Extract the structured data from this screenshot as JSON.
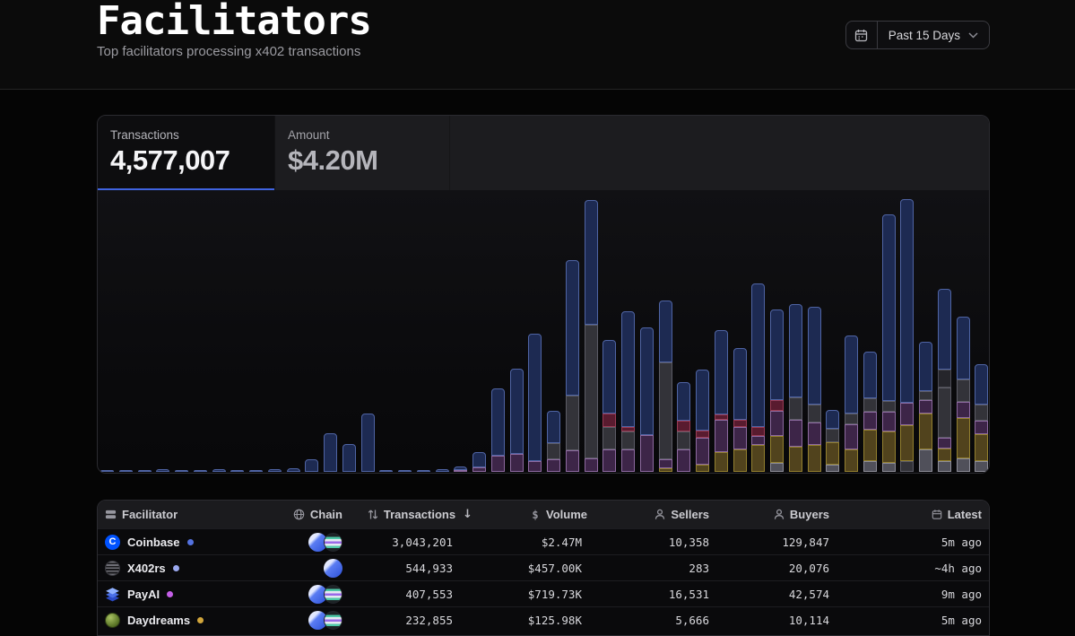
{
  "page": {
    "title": "Facilitators",
    "subtitle": "Top facilitators processing x402 transactions",
    "date_range_label": "Past 15 Days"
  },
  "tabs": [
    {
      "label": "Transactions",
      "value": "4,577,007",
      "active": true
    },
    {
      "label": "Amount",
      "value": "$4.20M",
      "active": false
    }
  ],
  "chart_data": {
    "type": "bar",
    "stacked": true,
    "title": "Transactions per interval (Past 15 Days)",
    "xlabel": "",
    "ylabel": "",
    "axis_labels_visible": false,
    "grid": false,
    "legend_position": "none",
    "value_unit": "relative-height-px",
    "palette": {
      "n": {
        "fill": "#1d2a52",
        "edge": "#4f64a4"
      },
      "g": {
        "fill": "#333339",
        "edge": "#5c5c66"
      },
      "p": {
        "fill": "#3d2548",
        "edge": "#8d6aa0"
      },
      "c": {
        "fill": "#591b2f",
        "edge": "#9a3c55"
      },
      "o": {
        "fill": "#51431d",
        "edge": "#93802f"
      },
      "l": {
        "fill": "#50505a",
        "edge": "#8d8d98"
      },
      "d": {
        "fill": "#25252b",
        "edge": "#4c4c55"
      }
    },
    "bars": [
      [
        [
          "n",
          2
        ]
      ],
      [
        [
          "n",
          2
        ]
      ],
      [
        [
          "n",
          2
        ]
      ],
      [
        [
          "n",
          3
        ]
      ],
      [
        [
          "n",
          2
        ]
      ],
      [
        [
          "n",
          2
        ]
      ],
      [
        [
          "n",
          3
        ]
      ],
      [
        [
          "n",
          2
        ]
      ],
      [
        [
          "n",
          2
        ]
      ],
      [
        [
          "n",
          3
        ]
      ],
      [
        [
          "n",
          4
        ]
      ],
      [
        [
          "n",
          14
        ]
      ],
      [
        [
          "n",
          43
        ]
      ],
      [
        [
          "n",
          31
        ]
      ],
      [
        [
          "n",
          65
        ]
      ],
      [
        [
          "n",
          2
        ]
      ],
      [
        [
          "n",
          2
        ]
      ],
      [
        [
          "n",
          2
        ]
      ],
      [
        [
          "n",
          3
        ]
      ],
      [
        [
          "p",
          2
        ],
        [
          "n",
          4
        ]
      ],
      [
        [
          "p",
          5
        ],
        [
          "n",
          17
        ]
      ],
      [
        [
          "p",
          18
        ],
        [
          "n",
          75
        ]
      ],
      [
        [
          "p",
          20
        ],
        [
          "n",
          95
        ]
      ],
      [
        [
          "p",
          12
        ],
        [
          "n",
          142
        ]
      ],
      [
        [
          "p",
          14
        ],
        [
          "g",
          18
        ],
        [
          "n",
          36
        ]
      ],
      [
        [
          "p",
          24
        ],
        [
          "g",
          61
        ],
        [
          "n",
          151
        ]
      ],
      [
        [
          "p",
          15
        ],
        [
          "g",
          149
        ],
        [
          "n",
          139
        ]
      ],
      [
        [
          "p",
          25
        ],
        [
          "g",
          25
        ],
        [
          "c",
          15
        ],
        [
          "n",
          82
        ]
      ],
      [
        [
          "p",
          25
        ],
        [
          "g",
          20
        ],
        [
          "c",
          5
        ],
        [
          "n",
          129
        ]
      ],
      [
        [
          "p",
          41
        ],
        [
          "n",
          120
        ]
      ],
      [
        [
          "o",
          4
        ],
        [
          "p",
          10
        ],
        [
          "g",
          108
        ],
        [
          "n",
          69
        ]
      ],
      [
        [
          "p",
          25
        ],
        [
          "g",
          20
        ],
        [
          "c",
          12
        ],
        [
          "n",
          43
        ]
      ],
      [
        [
          "o",
          8
        ],
        [
          "p",
          30
        ],
        [
          "c",
          8
        ],
        [
          "n",
          68
        ]
      ],
      [
        [
          "o",
          22
        ],
        [
          "p",
          36
        ],
        [
          "c",
          6
        ],
        [
          "n",
          94
        ]
      ],
      [
        [
          "o",
          25
        ],
        [
          "p",
          25
        ],
        [
          "c",
          8
        ],
        [
          "n",
          80
        ]
      ],
      [
        [
          "o",
          30
        ],
        [
          "p",
          10
        ],
        [
          "c",
          10
        ],
        [
          "n",
          160
        ]
      ],
      [
        [
          "l",
          10
        ],
        [
          "o",
          30
        ],
        [
          "p",
          28
        ],
        [
          "c",
          12
        ],
        [
          "n",
          101
        ]
      ],
      [
        [
          "o",
          28
        ],
        [
          "p",
          30
        ],
        [
          "g",
          25
        ],
        [
          "n",
          104
        ]
      ],
      [
        [
          "o",
          30
        ],
        [
          "p",
          25
        ],
        [
          "g",
          20
        ],
        [
          "n",
          109
        ]
      ],
      [
        [
          "l",
          8
        ],
        [
          "o",
          25
        ],
        [
          "g",
          15
        ],
        [
          "n",
          21
        ]
      ],
      [
        [
          "o",
          25
        ],
        [
          "p",
          28
        ],
        [
          "g",
          12
        ],
        [
          "n",
          87
        ]
      ],
      [
        [
          "l",
          12
        ],
        [
          "o",
          35
        ],
        [
          "p",
          20
        ],
        [
          "g",
          15
        ],
        [
          "n",
          52
        ]
      ],
      [
        [
          "l",
          10
        ],
        [
          "o",
          35
        ],
        [
          "p",
          22
        ],
        [
          "g",
          12
        ],
        [
          "n",
          208
        ]
      ],
      [
        [
          "g",
          12
        ],
        [
          "o",
          40
        ],
        [
          "p",
          25
        ],
        [
          "n",
          227
        ]
      ],
      [
        [
          "l",
          25
        ],
        [
          "o",
          40
        ],
        [
          "p",
          15
        ],
        [
          "g",
          10
        ],
        [
          "n",
          55
        ]
      ],
      [
        [
          "l",
          12
        ],
        [
          "o",
          14
        ],
        [
          "p",
          12
        ],
        [
          "g",
          56
        ],
        [
          "d",
          20
        ],
        [
          "n",
          90
        ]
      ],
      [
        [
          "l",
          15
        ],
        [
          "o",
          45
        ],
        [
          "p",
          18
        ],
        [
          "g",
          25
        ],
        [
          "n",
          70
        ]
      ],
      [
        [
          "l",
          12
        ],
        [
          "o",
          30
        ],
        [
          "p",
          15
        ],
        [
          "g",
          18
        ],
        [
          "n",
          45
        ]
      ]
    ]
  },
  "table": {
    "columns": [
      {
        "key": "facilitator",
        "label": "Facilitator",
        "icon": "rows"
      },
      {
        "key": "chain",
        "label": "Chain",
        "icon": "globe"
      },
      {
        "key": "transactions",
        "label": "Transactions",
        "icon": "sort",
        "sorted": "desc"
      },
      {
        "key": "volume",
        "label": "Volume",
        "icon": "dollar"
      },
      {
        "key": "sellers",
        "label": "Sellers",
        "icon": "person"
      },
      {
        "key": "buyers",
        "label": "Buyers",
        "icon": "person"
      },
      {
        "key": "latest",
        "label": "Latest",
        "icon": "calendar"
      }
    ],
    "rows": [
      {
        "facilitator": "Coinbase",
        "logo": "coinbase",
        "status_color": "#5472e0",
        "chains": [
          "base",
          "solana"
        ],
        "transactions": "3,043,201",
        "volume": "$2.47M",
        "sellers": "10,358",
        "buyers": "129,847",
        "latest": "5m ago"
      },
      {
        "facilitator": "X402rs",
        "logo": "x402rs",
        "status_color": "#9aa8ee",
        "chains": [
          "base"
        ],
        "transactions": "544,933",
        "volume": "$457.00K",
        "sellers": "283",
        "buyers": "20,076",
        "latest": "~4h ago"
      },
      {
        "facilitator": "PayAI",
        "logo": "payai",
        "status_color": "#c45fe8",
        "chains": [
          "base",
          "solana"
        ],
        "transactions": "407,553",
        "volume": "$719.73K",
        "sellers": "16,531",
        "buyers": "42,574",
        "latest": "9m ago"
      },
      {
        "facilitator": "Daydreams",
        "logo": "daydreams",
        "status_color": "#d2a63c",
        "chains": [
          "base",
          "solana"
        ],
        "transactions": "232,855",
        "volume": "$125.98K",
        "sellers": "5,666",
        "buyers": "10,114",
        "latest": "5m ago"
      }
    ]
  }
}
